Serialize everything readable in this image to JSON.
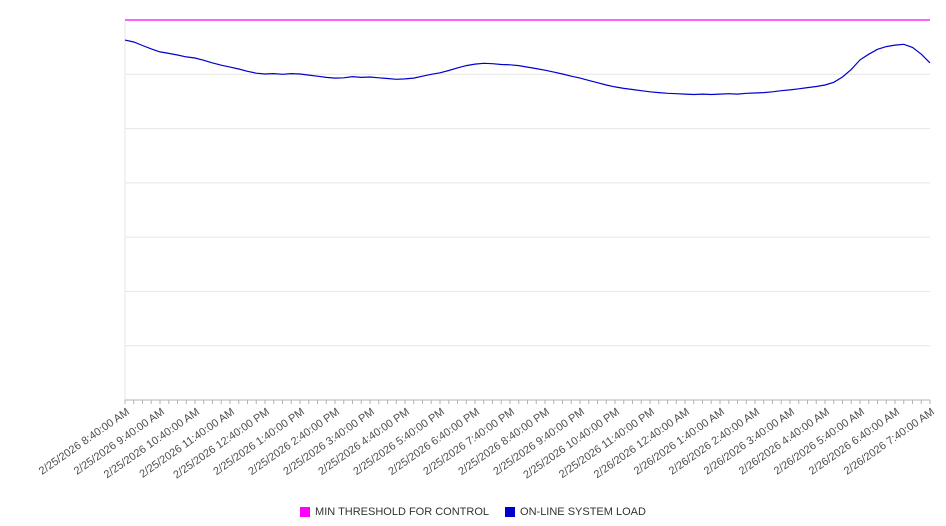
{
  "chart_data": {
    "type": "line",
    "title": "",
    "xlabel": "",
    "ylabel": "",
    "ylim": [
      0,
      100
    ],
    "grid": true,
    "gridline_rows": 7,
    "y_tick_labels_visible": false,
    "legend_position": "bottom",
    "categories": [
      "2/25/2026 8:40:00 AM",
      "2/25/2026 9:40:00 AM",
      "2/25/2026 10:40:00 AM",
      "2/25/2026 11:40:00 AM",
      "2/25/2026 12:40:00 PM",
      "2/25/2026 1:40:00 PM",
      "2/25/2026 2:40:00 PM",
      "2/25/2026 3:40:00 PM",
      "2/25/2026 4:40:00 PM",
      "2/25/2026 5:40:00 PM",
      "2/25/2026 6:40:00 PM",
      "2/25/2026 7:40:00 PM",
      "2/25/2026 8:40:00 PM",
      "2/25/2026 9:40:00 PM",
      "2/25/2026 10:40:00 PM",
      "2/25/2026 11:40:00 PM",
      "2/26/2026 12:40:00 AM",
      "2/26/2026 1:40:00 AM",
      "2/26/2026 2:40:00 AM",
      "2/26/2026 3:40:00 AM",
      "2/26/2026 4:40:00 AM",
      "2/26/2026 5:40:00 AM",
      "2/26/2026 6:40:00 AM",
      "2/26/2026 7:40:00 AM"
    ],
    "series": [
      {
        "name": "MIN THRESHOLD FOR CONTROL",
        "color": "#ff00ff",
        "values": [
          100,
          100
        ]
      },
      {
        "name": "ON-LINE SYSTEM LOAD",
        "color": "#0000cd",
        "values": [
          94.7,
          94.2,
          93.3,
          92.4,
          91.6,
          91.2,
          90.8,
          90.3,
          90.0,
          89.4,
          88.7,
          88.1,
          87.6,
          87.1,
          86.5,
          86.0,
          85.8,
          85.9,
          85.7,
          85.9,
          85.8,
          85.5,
          85.2,
          84.9,
          84.7,
          84.8,
          85.1,
          84.9,
          85.0,
          84.8,
          84.6,
          84.4,
          84.5,
          84.7,
          85.2,
          85.7,
          86.1,
          86.7,
          87.4,
          88.0,
          88.4,
          88.6,
          88.5,
          88.3,
          88.2,
          88.0,
          87.6,
          87.2,
          86.8,
          86.3,
          85.8,
          85.2,
          84.7,
          84.1,
          83.5,
          82.9,
          82.4,
          82.0,
          81.7,
          81.4,
          81.1,
          80.9,
          80.7,
          80.6,
          80.5,
          80.4,
          80.5,
          80.4,
          80.5,
          80.6,
          80.5,
          80.7,
          80.8,
          80.9,
          81.1,
          81.4,
          81.6,
          81.9,
          82.2,
          82.5,
          82.9,
          83.6,
          85.0,
          87.0,
          89.5,
          91.0,
          92.3,
          93.0,
          93.4,
          93.6,
          92.8,
          91.0,
          88.7
        ]
      }
    ],
    "colors": {
      "gridline": "#e6e6e6",
      "axis": "#b3b3b3",
      "tick": "#b3b3b3",
      "label_text": "#4d4d4d"
    }
  }
}
